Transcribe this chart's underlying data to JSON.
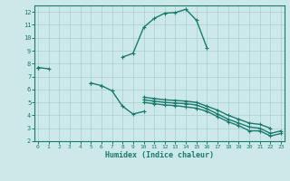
{
  "xlabel": "Humidex (Indice chaleur)",
  "background_color": "#cce8e8",
  "line_color": "#1a7a6e",
  "grid_color": "#aacfcf",
  "x": [
    0,
    1,
    2,
    3,
    4,
    5,
    6,
    7,
    8,
    9,
    10,
    11,
    12,
    13,
    14,
    15,
    16,
    17,
    18,
    19,
    20,
    21,
    22,
    23
  ],
  "line_upper": [
    7.7,
    7.6,
    null,
    null,
    null,
    null,
    null,
    null,
    8.5,
    8.8,
    10.8,
    11.5,
    11.9,
    11.95,
    12.2,
    11.35,
    9.2,
    null,
    null,
    null,
    null,
    null,
    null,
    null
  ],
  "line_mid_left": [
    null,
    null,
    null,
    null,
    null,
    6.5,
    6.3,
    null,
    null,
    null,
    null,
    null,
    null,
    null,
    null,
    null,
    null,
    null,
    null,
    null,
    null,
    null,
    null,
    null
  ],
  "line_dip": [
    null,
    null,
    null,
    null,
    null,
    null,
    6.3,
    5.9,
    4.7,
    4.1,
    4.3,
    null,
    null,
    null,
    null,
    null,
    null,
    null,
    null,
    null,
    null,
    null,
    null,
    null
  ],
  "line_flat_upper": [
    7.7,
    null,
    null,
    null,
    null,
    6.5,
    null,
    null,
    null,
    null,
    5.4,
    5.3,
    5.2,
    5.15,
    5.1,
    5.0,
    4.7,
    4.4,
    4.0,
    3.7,
    3.4,
    3.3,
    3.0,
    null
  ],
  "line_flat_mid": [
    7.7,
    null,
    null,
    null,
    null,
    null,
    null,
    null,
    null,
    null,
    5.2,
    5.1,
    5.0,
    4.95,
    4.9,
    4.8,
    4.5,
    4.1,
    3.7,
    3.4,
    3.1,
    3.0,
    2.6,
    2.8
  ],
  "line_flat_low": [
    null,
    null,
    null,
    null,
    null,
    null,
    null,
    null,
    null,
    null,
    5.0,
    4.9,
    4.8,
    4.75,
    4.65,
    4.55,
    4.3,
    3.9,
    3.5,
    3.2,
    2.8,
    2.8,
    2.4,
    2.6
  ],
  "ylim": [
    2,
    12.5
  ],
  "xlim": [
    -0.3,
    23.3
  ],
  "yticks": [
    2,
    3,
    4,
    5,
    6,
    7,
    8,
    9,
    10,
    11,
    12
  ],
  "xticks": [
    0,
    1,
    2,
    3,
    4,
    5,
    6,
    7,
    8,
    9,
    10,
    11,
    12,
    13,
    14,
    15,
    16,
    17,
    18,
    19,
    20,
    21,
    22,
    23
  ]
}
